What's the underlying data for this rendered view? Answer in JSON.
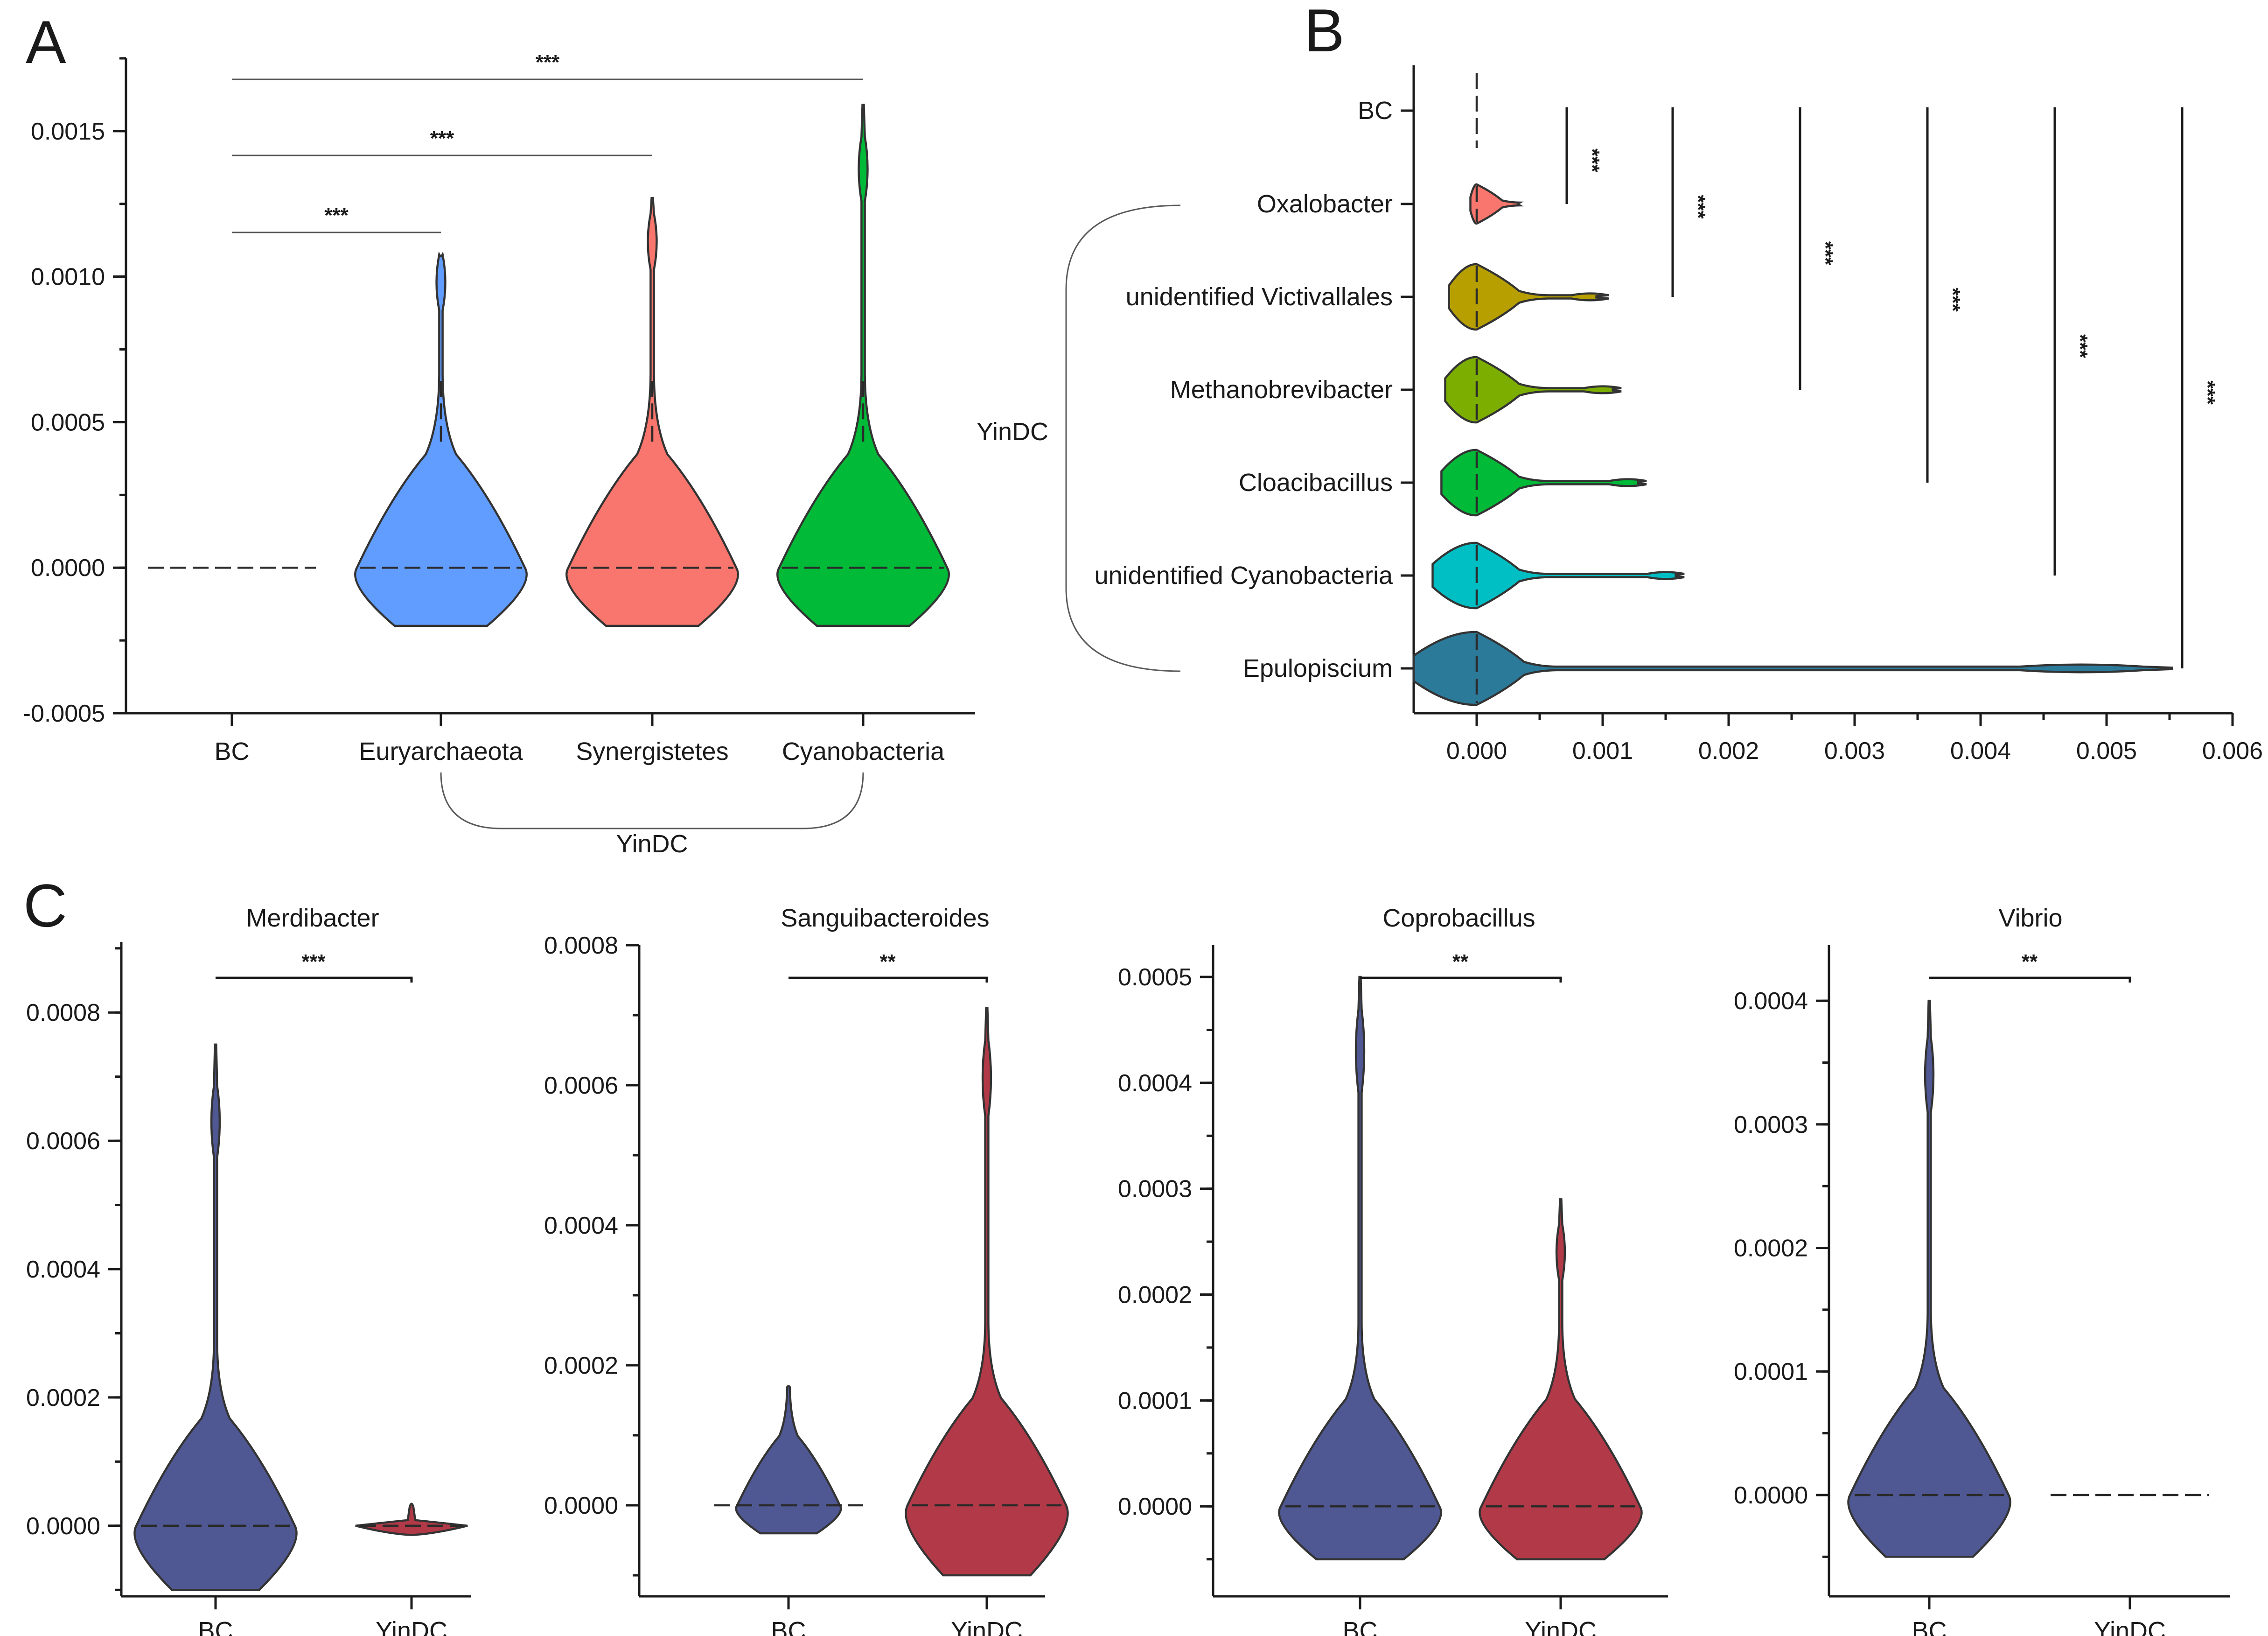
{
  "figure": {
    "colors": {
      "BC": "#4f5893",
      "YinDC_C": "#b23a48",
      "Euryarchaeota": "#619cff",
      "Synergistetes": "#f8766d",
      "Cyanobacteria": "#00ba38",
      "Oxalobacter": "#f8766d",
      "unidentified Victivallales": "#b79f00",
      "Methanobrevibacter": "#7cae00",
      "Cloacibacillus": "#00ba38",
      "unidentified Cyanobacteria": "#00bfc4",
      "Epulopiscium": "#2c7a9a"
    }
  },
  "chart_data": [
    {
      "panel": "A",
      "type": "violin",
      "orientation": "vertical",
      "title": "",
      "group_label": "YinDC",
      "categories": [
        "BC",
        "Euryarchaeota",
        "Synergistetes",
        "Cyanobacteria"
      ],
      "yticks": [
        "-0.0005",
        "0.0000",
        "0.0005",
        "0.0010",
        "0.0015"
      ],
      "ylim": [
        -0.0005,
        0.00175
      ],
      "medians": [
        0,
        0,
        0,
        0
      ],
      "ranges": [
        [
          0,
          0
        ],
        [
          -0.0002,
          0.00107
        ],
        [
          -0.0002,
          0.00127
        ],
        [
          -0.0002,
          0.00159
        ]
      ],
      "comparisons": [
        {
          "from": "BC",
          "to": "Euryarchaeota",
          "label": "***"
        },
        {
          "from": "BC",
          "to": "Synergistetes",
          "label": "***"
        },
        {
          "from": "BC",
          "to": "Cyanobacteria",
          "label": "***"
        }
      ]
    },
    {
      "panel": "B",
      "type": "violin",
      "orientation": "horizontal",
      "title": "",
      "group_label": "YinDC",
      "categories": [
        "BC",
        "Oxalobacter",
        "unidentified Victivallales",
        "Methanobrevibacter",
        "Cloacibacillus",
        "unidentified Cyanobacteria",
        "Epulopiscium"
      ],
      "xticks": [
        "0.000",
        "0.001",
        "0.002",
        "0.003",
        "0.004",
        "0.005",
        "0.006"
      ],
      "xlim": [
        -0.0005,
        0.006
      ],
      "medians": [
        0,
        0,
        0,
        0,
        0,
        0,
        0
      ],
      "ranges": [
        [
          0,
          0
        ],
        [
          -5e-05,
          0.00033
        ],
        [
          -0.00022,
          0.00095
        ],
        [
          -0.00025,
          0.00108
        ],
        [
          -0.00028,
          0.00128
        ],
        [
          -0.00035,
          0.00158
        ],
        [
          -0.0005,
          0.00552
        ]
      ],
      "comparisons": [
        {
          "from": "BC",
          "to": "Oxalobacter",
          "label": "***"
        },
        {
          "from": "BC",
          "to": "unidentified Victivallales",
          "label": "***"
        },
        {
          "from": "BC",
          "to": "Methanobrevibacter",
          "label": "***"
        },
        {
          "from": "BC",
          "to": "Cloacibacillus",
          "label": "***"
        },
        {
          "from": "BC",
          "to": "unidentified Cyanobacteria",
          "label": "***"
        },
        {
          "from": "BC",
          "to": "Epulopiscium",
          "label": "***"
        }
      ]
    },
    {
      "panel": "C",
      "type": "violin",
      "orientation": "vertical",
      "title": "Merdibacter",
      "categories": [
        "BC",
        "YinDC"
      ],
      "yticks": [
        "0.0000",
        "0.0002",
        "0.0004",
        "0.0006",
        "0.0008"
      ],
      "ylim": [
        -0.00011,
        0.00091
      ],
      "medians": [
        0,
        0
      ],
      "ranges": [
        [
          -0.0001,
          0.00075
        ],
        [
          -1e-05,
          3.5e-05
        ]
      ],
      "comparisons": [
        {
          "from": "BC",
          "to": "YinDC",
          "label": "***"
        }
      ]
    },
    {
      "panel": "",
      "type": "violin",
      "orientation": "vertical",
      "title": "Sanguibacteroides",
      "categories": [
        "BC",
        "YinDC"
      ],
      "yticks": [
        "0.0000",
        "0.0002",
        "0.0004",
        "0.0006",
        "0.0008"
      ],
      "ylim": [
        -0.00013,
        0.0008
      ],
      "medians": [
        0,
        0
      ],
      "ranges": [
        [
          -4e-05,
          0.00017
        ],
        [
          -0.0001,
          0.00071
        ]
      ],
      "comparisons": [
        {
          "from": "BC",
          "to": "YinDC",
          "label": "**"
        }
      ]
    },
    {
      "panel": "",
      "type": "violin",
      "orientation": "vertical",
      "title": "Coprobacillus",
      "categories": [
        "BC",
        "YinDC"
      ],
      "yticks": [
        "0.0000",
        "0.0001",
        "0.0002",
        "0.0003",
        "0.0004",
        "0.0005"
      ],
      "ylim": [
        -8.5e-05,
        0.00053
      ],
      "medians": [
        0,
        0
      ],
      "ranges": [
        [
          -5e-05,
          0.0005
        ],
        [
          -5e-05,
          0.00029
        ]
      ],
      "comparisons": [
        {
          "from": "BC",
          "to": "YinDC",
          "label": "**"
        }
      ]
    },
    {
      "panel": "",
      "type": "violin",
      "orientation": "vertical",
      "title": "Vibrio",
      "categories": [
        "BC",
        "YinDC"
      ],
      "yticks": [
        "0.0000",
        "0.0001",
        "0.0002",
        "0.0003",
        "0.0004"
      ],
      "ylim": [
        -8.2e-05,
        0.000445
      ],
      "medians": [
        0,
        0
      ],
      "ranges": [
        [
          -5e-05,
          0.0004
        ],
        [
          0,
          0
        ]
      ],
      "comparisons": [
        {
          "from": "BC",
          "to": "YinDC",
          "label": "**"
        }
      ]
    }
  ]
}
